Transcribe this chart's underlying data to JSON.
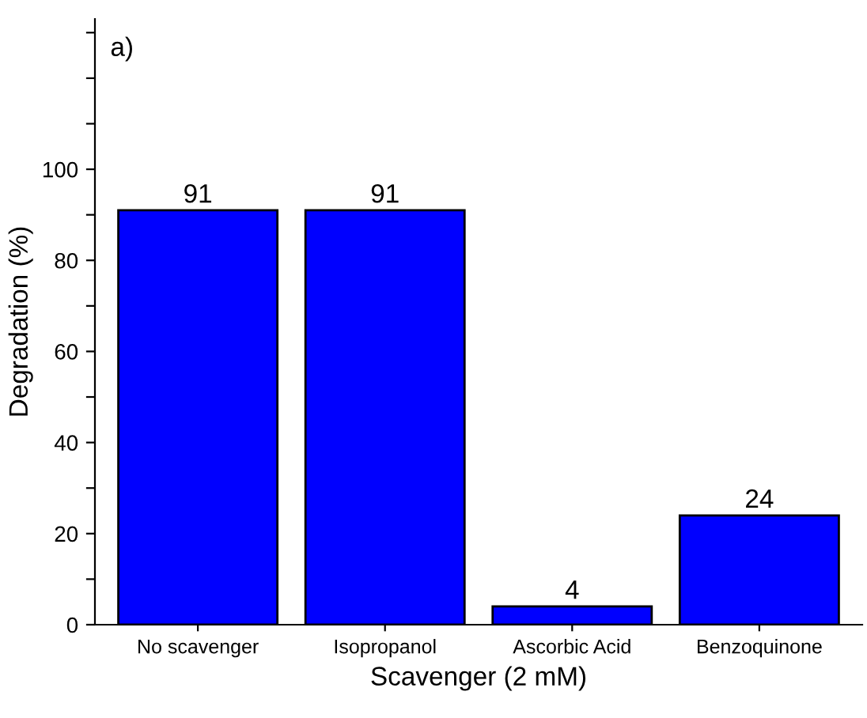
{
  "chart_data": {
    "type": "bar",
    "xlabel": "Scavenger (2 mM)",
    "ylabel": "Degradation (%)",
    "categories": [
      "No scavenger",
      "Isopropanol",
      "Ascorbic Acid",
      "Benzoquinone"
    ],
    "values": [
      91,
      91,
      4,
      24
    ],
    "color": "#0000ff",
    "ylim": [
      0,
      133
    ],
    "yticks": [
      0,
      {
        "value": 10,
        "label": null
      },
      20,
      {
        "value": 30,
        "label": null
      },
      40,
      {
        "value": 50,
        "label": null
      },
      60,
      {
        "value": 70,
        "label": null
      },
      80,
      {
        "value": 90,
        "label": null
      },
      100,
      {
        "value": 110,
        "label": null
      },
      {
        "value": 120,
        "label": null
      },
      {
        "value": 130,
        "label": null
      }
    ],
    "data_labels": true,
    "grid": false,
    "legend": false,
    "annotations": [
      "a)"
    ]
  }
}
